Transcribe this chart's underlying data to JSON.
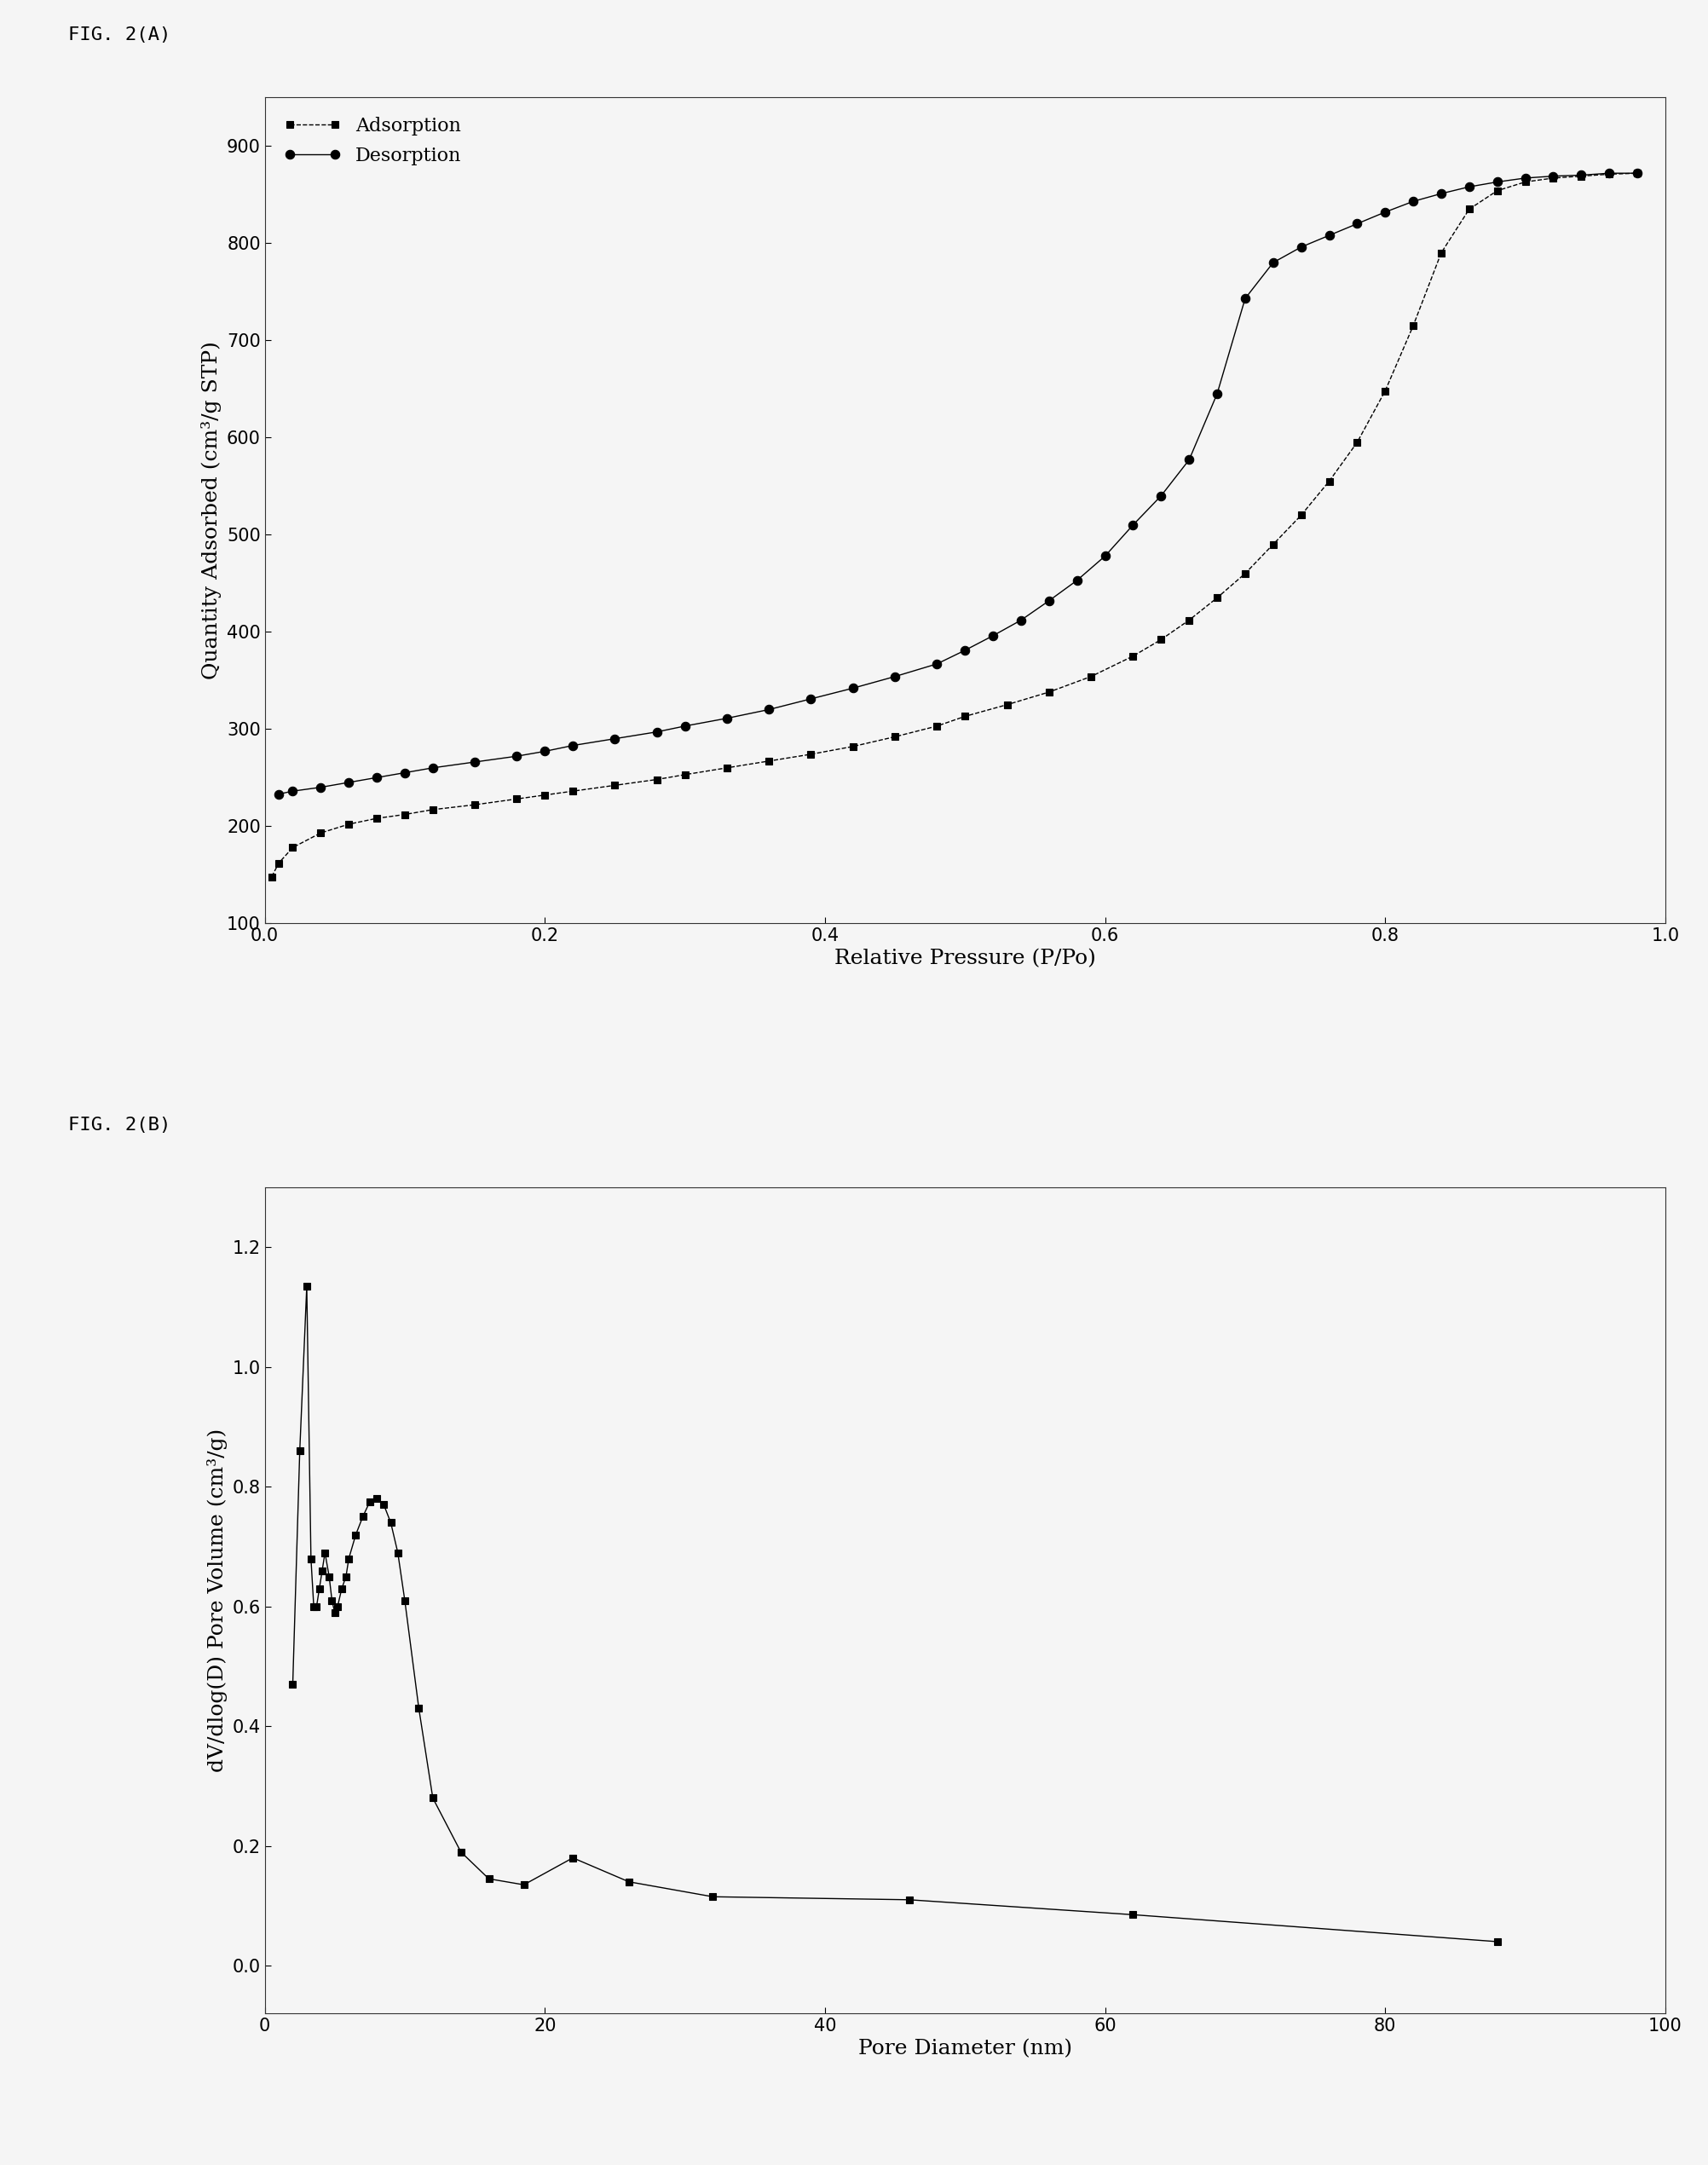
{
  "fig_label_A": "FIG. 2(A)",
  "fig_label_B": "FIG. 2(B)",
  "adsorption_x": [
    0.005,
    0.01,
    0.02,
    0.04,
    0.06,
    0.08,
    0.1,
    0.12,
    0.15,
    0.18,
    0.2,
    0.22,
    0.25,
    0.28,
    0.3,
    0.33,
    0.36,
    0.39,
    0.42,
    0.45,
    0.48,
    0.5,
    0.53,
    0.56,
    0.59,
    0.62,
    0.64,
    0.66,
    0.68,
    0.7,
    0.72,
    0.74,
    0.76,
    0.78,
    0.8,
    0.82,
    0.84,
    0.86,
    0.88,
    0.9,
    0.92,
    0.94,
    0.96,
    0.98
  ],
  "adsorption_y": [
    148,
    162,
    178,
    193,
    202,
    208,
    212,
    217,
    222,
    228,
    232,
    236,
    242,
    248,
    253,
    260,
    267,
    274,
    282,
    292,
    303,
    313,
    325,
    338,
    354,
    375,
    392,
    412,
    435,
    460,
    490,
    520,
    555,
    595,
    648,
    715,
    790,
    835,
    854,
    863,
    867,
    869,
    871,
    872
  ],
  "desorption_x": [
    0.98,
    0.96,
    0.94,
    0.92,
    0.9,
    0.88,
    0.86,
    0.84,
    0.82,
    0.8,
    0.78,
    0.76,
    0.74,
    0.72,
    0.7,
    0.68,
    0.66,
    0.64,
    0.62,
    0.6,
    0.58,
    0.56,
    0.54,
    0.52,
    0.5,
    0.48,
    0.45,
    0.42,
    0.39,
    0.36,
    0.33,
    0.3,
    0.28,
    0.25,
    0.22,
    0.2,
    0.18,
    0.15,
    0.12,
    0.1,
    0.08,
    0.06,
    0.04,
    0.02,
    0.01
  ],
  "desorption_y": [
    872,
    872,
    870,
    869,
    867,
    863,
    858,
    851,
    843,
    832,
    820,
    808,
    796,
    780,
    743,
    645,
    577,
    540,
    510,
    478,
    453,
    432,
    412,
    396,
    381,
    367,
    354,
    342,
    331,
    320,
    311,
    303,
    297,
    290,
    283,
    277,
    272,
    266,
    260,
    255,
    250,
    245,
    240,
    236,
    233
  ],
  "ylabel_A": "Quantity Adsorbed (cm³/g STP)",
  "xlabel_A": "Relative Pressure (P/Po)",
  "ylim_A": [
    100,
    950
  ],
  "yticks_A": [
    100,
    200,
    300,
    400,
    500,
    600,
    700,
    800,
    900
  ],
  "xlim_A": [
    0.0,
    1.0
  ],
  "xticks_A": [
    0.0,
    0.2,
    0.4,
    0.6,
    0.8,
    1.0
  ],
  "legend_labels_A": [
    "Adsorption",
    "Desorption"
  ],
  "pore_x": [
    2.0,
    2.5,
    3.0,
    3.3,
    3.5,
    3.7,
    3.9,
    4.1,
    4.3,
    4.6,
    4.8,
    5.0,
    5.2,
    5.5,
    5.8,
    6.0,
    6.5,
    7.0,
    7.5,
    8.0,
    8.5,
    9.0,
    9.5,
    10.0,
    11.0,
    12.0,
    14.0,
    16.0,
    18.5,
    22.0,
    26.0,
    32.0,
    46.0,
    62.0,
    88.0
  ],
  "pore_y": [
    0.47,
    0.86,
    1.135,
    0.68,
    0.6,
    0.6,
    0.63,
    0.66,
    0.69,
    0.65,
    0.61,
    0.59,
    0.6,
    0.63,
    0.65,
    0.68,
    0.72,
    0.75,
    0.775,
    0.78,
    0.77,
    0.74,
    0.69,
    0.61,
    0.43,
    0.28,
    0.19,
    0.145,
    0.135,
    0.18,
    0.14,
    0.115,
    0.11,
    0.085,
    0.04
  ],
  "ylabel_B": "dV/dlog(D) Pore Volume (cm³/g)",
  "xlabel_B": "Pore Diameter (nm)",
  "ylim_B": [
    -0.08,
    1.3
  ],
  "yticks_B": [
    0.0,
    0.2,
    0.4,
    0.6,
    0.8,
    1.0,
    1.2
  ],
  "xlim_B": [
    0,
    100
  ],
  "xticks_B": [
    0,
    20,
    40,
    60,
    80,
    100
  ],
  "line_color": "#000000",
  "marker_color": "#000000",
  "bg_color": "#f5f5f5",
  "font_size": 16,
  "label_font_size": 18,
  "tick_font_size": 15,
  "fig_label_font_size": 16
}
